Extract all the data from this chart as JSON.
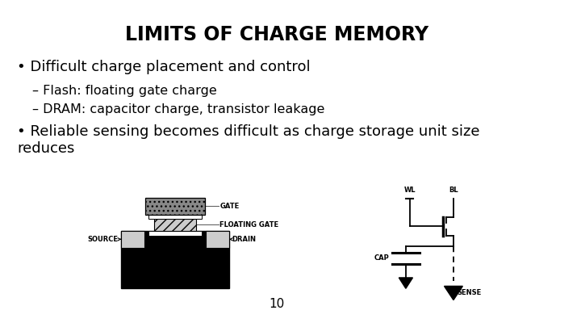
{
  "title": "LIMITS OF CHARGE MEMORY",
  "background_color": "#ffffff",
  "text_color": "#000000",
  "bullet1": "Difficult charge placement and control",
  "sub1": "– Flash: floating gate charge",
  "sub2": "– DRAM: capacitor charge, transistor leakage",
  "bullet2": "Reliable sensing becomes difficult as charge storage unit size\nreduces",
  "page_number": "10",
  "title_fontsize": 17,
  "body_fontsize": 13,
  "sub_fontsize": 11.5,
  "diagram_fontsize": 6
}
